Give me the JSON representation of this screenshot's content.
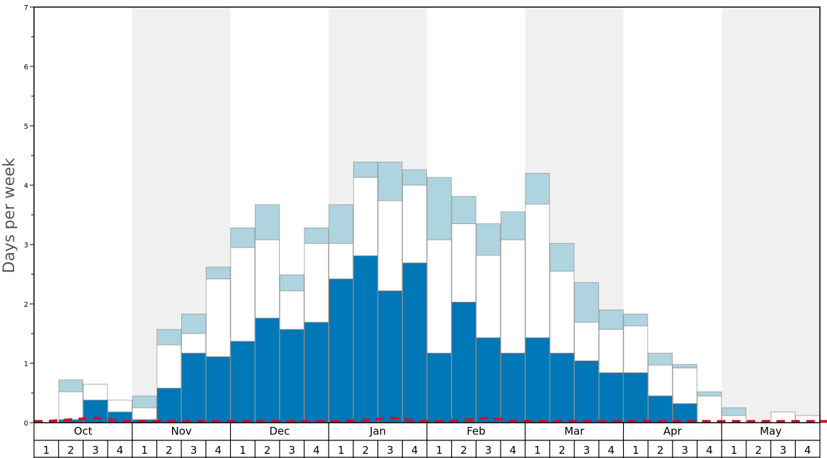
{
  "chart_data": {
    "type": "bar",
    "ylabel": "Days per week",
    "ylim": [
      0,
      7
    ],
    "yticks": [
      "0",
      "1",
      "2",
      "3",
      "4",
      "5",
      "6",
      "7"
    ],
    "months": [
      "Oct",
      "Nov",
      "Dec",
      "Jan",
      "Feb",
      "Mar",
      "Apr",
      "May"
    ],
    "weeks": [
      "1",
      "2",
      "3",
      "4"
    ],
    "colors": {
      "dark": "#0077b6",
      "white": "#ffffff",
      "light": "#aed4e0",
      "dashed_line": "#cc1128",
      "shaded_band": "#f0f0f0"
    },
    "series": [
      {
        "values": [
          0.0,
          0.05,
          0.38,
          0.18,
          0.05,
          0.58,
          1.17,
          1.11,
          1.37,
          1.76,
          1.57,
          1.69,
          2.42,
          2.81,
          2.22,
          2.69,
          1.17,
          2.03,
          1.43,
          1.17,
          1.43,
          1.17,
          1.04,
          0.84,
          0.84,
          0.45,
          0.32,
          0.0,
          0.0,
          0.0,
          0.0,
          0.0,
          0.0
        ]
      },
      {
        "values": [
          0.0,
          0.52,
          0.65,
          0.38,
          0.25,
          1.31,
          1.5,
          2.42,
          2.95,
          3.08,
          2.22,
          3.02,
          3.02,
          4.13,
          3.74,
          4.0,
          3.08,
          3.35,
          2.82,
          3.08,
          3.68,
          2.55,
          1.69,
          1.57,
          1.63,
          0.97,
          0.92,
          0.45,
          0.12,
          0.0,
          0.18,
          0.12,
          0.0
        ]
      },
      {
        "values": [
          0.0,
          0.72,
          0.65,
          0.38,
          0.45,
          1.57,
          1.83,
          2.62,
          3.28,
          3.67,
          2.49,
          3.28,
          3.67,
          4.39,
          4.39,
          4.26,
          4.13,
          3.81,
          3.35,
          3.55,
          4.2,
          3.02,
          2.36,
          1.9,
          1.83,
          1.17,
          0.98,
          0.52,
          0.25,
          0.0,
          0.18,
          0.12,
          0.0
        ]
      },
      {
        "values": [
          0.02,
          0.05,
          0.08,
          0.03,
          0.02,
          0.02,
          0.02,
          0.02,
          0.02,
          0.02,
          0.02,
          0.02,
          0.02,
          0.04,
          0.08,
          0.03,
          0.02,
          0.04,
          0.08,
          0.03,
          0.02,
          0.02,
          0.02,
          0.02,
          0.02,
          0.02,
          0.02,
          0.02,
          0.02,
          0.02,
          0.02,
          0.02,
          0.02
        ]
      }
    ]
  }
}
